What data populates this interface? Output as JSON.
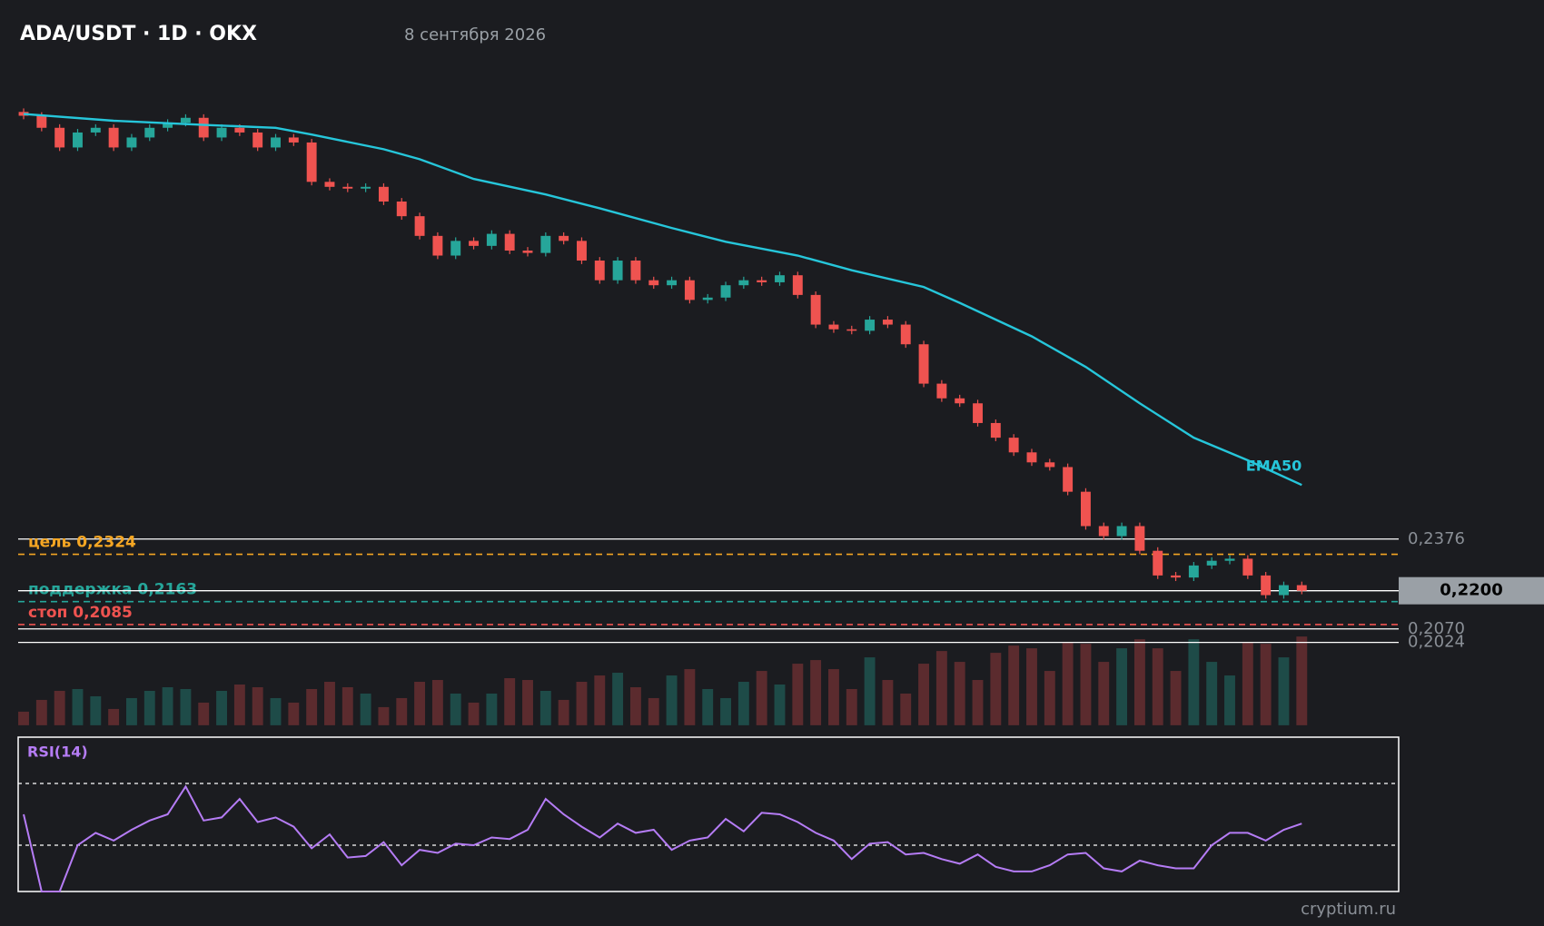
{
  "chart_data": {
    "type": "candlestick",
    "title": "ADA/USDT · 1D · OKX",
    "subtitle": "8 сентября 2026",
    "footer": "cryptium.ru",
    "up_color": "#26a69a",
    "down_color": "#ef5350",
    "ylim": [
      0.2,
      0.4
    ],
    "open": [
      0.383,
      0.3817,
      0.3776,
      0.3709,
      0.376,
      0.3776,
      0.3709,
      0.3743,
      0.3776,
      0.3793,
      0.381,
      0.3743,
      0.3776,
      0.376,
      0.3709,
      0.3743,
      0.3726,
      0.3592,
      0.3575,
      0.3569,
      0.3575,
      0.3525,
      0.3475,
      0.3408,
      0.3341,
      0.3391,
      0.3374,
      0.3415,
      0.3358,
      0.335,
      0.3408,
      0.3391,
      0.3324,
      0.3257,
      0.3324,
      0.3257,
      0.324,
      0.3257,
      0.319,
      0.3198,
      0.324,
      0.3257,
      0.325,
      0.3274,
      0.3207,
      0.3106,
      0.309,
      0.3085,
      0.3123,
      0.3106,
      0.3039,
      0.2905,
      0.2855,
      0.2838,
      0.2771,
      0.2721,
      0.2671,
      0.2637,
      0.2621,
      0.2537,
      0.242,
      0.2386,
      0.242,
      0.2336,
      0.2252,
      0.2245,
      0.2286,
      0.2302,
      0.2309,
      0.2252,
      0.2185,
      0.2219
    ],
    "high": [
      0.3842,
      0.3829,
      0.3788,
      0.3772,
      0.3788,
      0.3788,
      0.3755,
      0.3788,
      0.3805,
      0.3822,
      0.3822,
      0.3788,
      0.3788,
      0.3772,
      0.3755,
      0.3755,
      0.3738,
      0.3604,
      0.3587,
      0.3587,
      0.3587,
      0.3537,
      0.3487,
      0.342,
      0.3403,
      0.3403,
      0.3427,
      0.3427,
      0.337,
      0.342,
      0.342,
      0.3403,
      0.3336,
      0.3336,
      0.3336,
      0.3269,
      0.3269,
      0.3269,
      0.321,
      0.3252,
      0.3269,
      0.3269,
      0.3286,
      0.3286,
      0.3219,
      0.3118,
      0.3102,
      0.3135,
      0.3135,
      0.3118,
      0.3051,
      0.2917,
      0.2867,
      0.285,
      0.2783,
      0.2733,
      0.2683,
      0.2649,
      0.2633,
      0.2549,
      0.2432,
      0.2432,
      0.2432,
      0.2348,
      0.2264,
      0.2298,
      0.2314,
      0.2321,
      0.2321,
      0.2264,
      0.2231,
      0.2231
    ],
    "low": [
      0.3805,
      0.3764,
      0.3697,
      0.3697,
      0.3748,
      0.3697,
      0.3697,
      0.3731,
      0.3764,
      0.3781,
      0.3731,
      0.3731,
      0.3748,
      0.3697,
      0.3697,
      0.3714,
      0.358,
      0.3563,
      0.3557,
      0.3557,
      0.3513,
      0.3463,
      0.3396,
      0.3329,
      0.3329,
      0.3362,
      0.3362,
      0.3346,
      0.3338,
      0.3338,
      0.3379,
      0.3312,
      0.3245,
      0.3245,
      0.3245,
      0.3228,
      0.3228,
      0.3178,
      0.3178,
      0.3186,
      0.3228,
      0.3238,
      0.3238,
      0.3195,
      0.3094,
      0.3078,
      0.3073,
      0.3073,
      0.3094,
      0.3027,
      0.2893,
      0.2843,
      0.2826,
      0.2759,
      0.2709,
      0.2659,
      0.2625,
      0.2609,
      0.2525,
      0.2408,
      0.2374,
      0.2374,
      0.2324,
      0.224,
      0.2233,
      0.2233,
      0.2274,
      0.229,
      0.224,
      0.2173,
      0.2173,
      0.2188
    ],
    "close": [
      0.3817,
      0.3776,
      0.3709,
      0.376,
      0.3776,
      0.3709,
      0.3743,
      0.3776,
      0.3793,
      0.381,
      0.3743,
      0.3776,
      0.376,
      0.3709,
      0.3743,
      0.3726,
      0.3592,
      0.3575,
      0.3569,
      0.3575,
      0.3525,
      0.3475,
      0.3408,
      0.3341,
      0.3391,
      0.3374,
      0.3415,
      0.3358,
      0.335,
      0.3408,
      0.3391,
      0.3324,
      0.3257,
      0.3324,
      0.3257,
      0.324,
      0.3257,
      0.319,
      0.3198,
      0.324,
      0.3257,
      0.325,
      0.3274,
      0.3207,
      0.3106,
      0.309,
      0.3085,
      0.3123,
      0.3106,
      0.3039,
      0.2905,
      0.2855,
      0.2838,
      0.2771,
      0.2721,
      0.2671,
      0.2637,
      0.2621,
      0.2537,
      0.242,
      0.2386,
      0.242,
      0.2336,
      0.2252,
      0.2245,
      0.2286,
      0.2302,
      0.2309,
      0.2252,
      0.2185,
      0.2219,
      0.22
    ],
    "ema": {
      "name": "EMA50",
      "color": "#26c6da",
      "x": [
        0,
        5,
        10,
        14,
        16,
        20,
        22,
        25,
        29,
        32,
        36,
        39,
        43,
        46,
        50,
        52,
        56,
        59,
        62,
        65,
        68,
        71
      ],
      "values": [
        0.3823,
        0.38,
        0.3786,
        0.3776,
        0.3753,
        0.3703,
        0.3669,
        0.3602,
        0.3549,
        0.3502,
        0.3435,
        0.3388,
        0.3341,
        0.3291,
        0.3234,
        0.318,
        0.3066,
        0.2962,
        0.2838,
        0.2721,
        0.2644,
        0.256
      ]
    },
    "levels": [
      {
        "label": "цель 0,2324",
        "value": 0.2324,
        "color": "#f5a623"
      },
      {
        "label": "поддержка 0,2163",
        "value": 0.2163,
        "color": "#26a69a"
      },
      {
        "label": "стоп 0,2085",
        "value": 0.2085,
        "color": "#ef5350"
      }
    ],
    "price_lines": [
      {
        "value": 0.2376,
        "label": "0,2376"
      },
      {
        "value": 0.2024,
        "label": "0,2024"
      },
      {
        "value": 0.207,
        "label": "0,2070"
      }
    ],
    "current_price": {
      "value": 0.22,
      "label": "0,2200"
    },
    "volume": {
      "up_color": "#1e4b48",
      "down_color": "#5b2b2e",
      "ylim": [
        0,
        100
      ],
      "values": [
        15,
        28,
        38,
        40,
        32,
        18,
        30,
        38,
        42,
        40,
        25,
        38,
        45,
        42,
        30,
        25,
        40,
        48,
        42,
        35,
        20,
        30,
        48,
        50,
        35,
        25,
        35,
        52,
        50,
        38,
        28,
        48,
        55,
        58,
        42,
        30,
        55,
        62,
        40,
        30,
        48,
        60,
        45,
        68,
        72,
        62,
        40,
        75,
        50,
        35,
        68,
        82,
        70,
        50,
        80,
        88,
        85,
        60,
        92,
        90,
        70,
        85,
        95,
        85,
        60,
        95,
        70,
        55,
        92,
        90,
        75,
        98
      ]
    },
    "rsi": {
      "title": "RSI(14)",
      "color": "#b57cf5",
      "ylim": [
        0,
        100
      ],
      "levels": [
        70,
        30
      ],
      "values": [
        50,
        0,
        0,
        30,
        38,
        33,
        40,
        46,
        50,
        68,
        46,
        48,
        60,
        45,
        48,
        42,
        28,
        37,
        22,
        23,
        32,
        17,
        27,
        25,
        31,
        30,
        35,
        34,
        40,
        60,
        50,
        42,
        35,
        44,
        38,
        40,
        27,
        33,
        35,
        47,
        39,
        51,
        50,
        45,
        38,
        33,
        21,
        31,
        32,
        24,
        25,
        21,
        18,
        24,
        16,
        13,
        13,
        17,
        24,
        25,
        15,
        13,
        20,
        17,
        15,
        15,
        30,
        38,
        38,
        33,
        40,
        44
      ]
    }
  }
}
